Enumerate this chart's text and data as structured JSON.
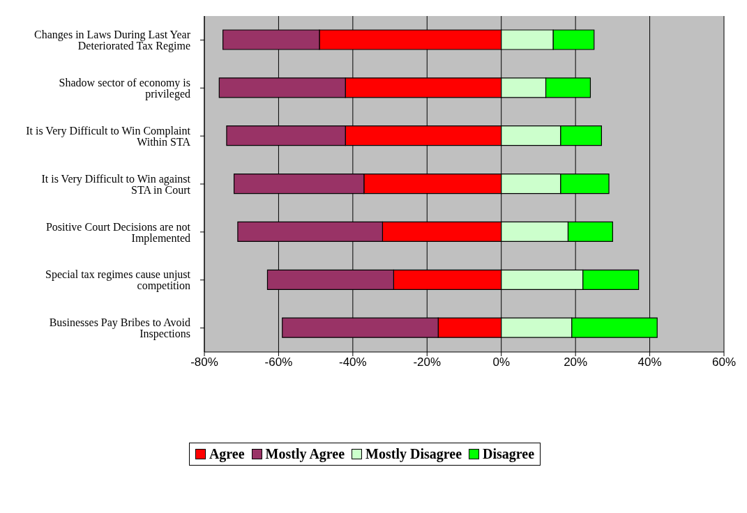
{
  "chart_data": {
    "type": "bar",
    "orientation": "horizontal",
    "stacked": true,
    "categories": [
      "Changes in Laws During Last Year Deteriorated Tax Regime",
      "Shadow sector of economy is privileged",
      "It is Very Difficult to Win Complaint Within STA",
      "It is Very Difficult to Win against STA in Court",
      "Positive Court Decisions are not Implemented",
      "Special tax regimes cause unjust competition",
      "Businesses Pay Bribes to Avoid Inspections"
    ],
    "series": [
      {
        "name": "Agree",
        "color": "#ff0000",
        "values": [
          -49,
          -42,
          -42,
          -37,
          -32,
          -29,
          -17
        ]
      },
      {
        "name": "Mostly Agree",
        "color": "#993366",
        "values": [
          -26,
          -34,
          -32,
          -35,
          -39,
          -34,
          -42
        ]
      },
      {
        "name": "Mostly Disagree",
        "color": "#ccffcc",
        "values": [
          14,
          12,
          16,
          16,
          18,
          22,
          19
        ]
      },
      {
        "name": "Disagree",
        "color": "#00ff00",
        "values": [
          11,
          12,
          11,
          13,
          12,
          15,
          23
        ]
      }
    ],
    "xlim": [
      -80,
      60
    ],
    "xticks": [
      {
        "value": -80,
        "label": "-80%"
      },
      {
        "value": -60,
        "label": "-60%"
      },
      {
        "value": -40,
        "label": "-40%"
      },
      {
        "value": -20,
        "label": "-20%"
      },
      {
        "value": 0,
        "label": "0%"
      },
      {
        "value": 20,
        "label": "20%"
      },
      {
        "value": 40,
        "label": "40%"
      },
      {
        "value": 60,
        "label": "60%"
      }
    ],
    "grid": "x",
    "legend": "bottom"
  }
}
